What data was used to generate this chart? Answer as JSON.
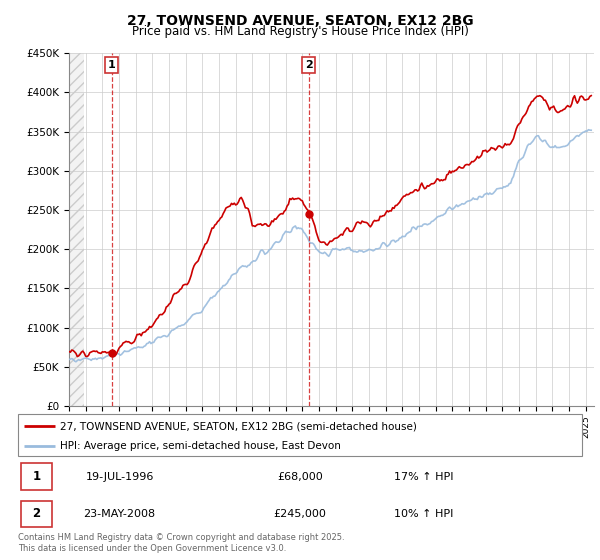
{
  "title": "27, TOWNSEND AVENUE, SEATON, EX12 2BG",
  "subtitle": "Price paid vs. HM Land Registry's House Price Index (HPI)",
  "ylim": [
    0,
    450000
  ],
  "yticks": [
    0,
    50000,
    100000,
    150000,
    200000,
    250000,
    300000,
    350000,
    400000,
    450000
  ],
  "ytick_labels": [
    "£0",
    "£50K",
    "£100K",
    "£150K",
    "£200K",
    "£250K",
    "£300K",
    "£350K",
    "£400K",
    "£450K"
  ],
  "xlim_start": 1994.0,
  "xlim_end": 2025.5,
  "red_line_color": "#cc0000",
  "blue_line_color": "#99bbdd",
  "marker1_x": 1996.55,
  "marker1_y": 68000,
  "marker2_x": 2008.39,
  "marker2_y": 245000,
  "legend_line1": "27, TOWNSEND AVENUE, SEATON, EX12 2BG (semi-detached house)",
  "legend_line2": "HPI: Average price, semi-detached house, East Devon",
  "table_row1": [
    "1",
    "19-JUL-1996",
    "£68,000",
    "17% ↑ HPI"
  ],
  "table_row2": [
    "2",
    "23-MAY-2008",
    "£245,000",
    "10% ↑ HPI"
  ],
  "copyright": "Contains HM Land Registry data © Crown copyright and database right 2025.\nThis data is licensed under the Open Government Licence v3.0.",
  "bg_color": "#ffffff",
  "grid_color": "#cccccc",
  "title_fontsize": 10,
  "subtitle_fontsize": 8.5
}
